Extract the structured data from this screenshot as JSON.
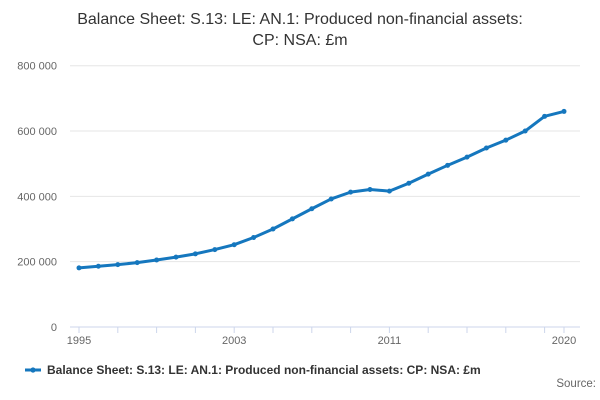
{
  "page": {
    "source_label": "Source:"
  },
  "legend": {
    "label": "Balance Sheet: S.13: LE: AN.1: Produced non-financial assets: CP: NSA: £m"
  },
  "colors": {
    "line": "#1577be",
    "marker": "#1577be",
    "grid": "#e6e6e6",
    "axis": "#ccd6eb",
    "tick_label": "#666666",
    "title_text": "#333333"
  },
  "chart_data": {
    "type": "line",
    "title": "Balance Sheet: S.13: LE: AN.1: Produced non-financial assets: CP: NSA: £m",
    "xlabel": "",
    "ylabel": "",
    "grid": "horizontal",
    "legend_position": "bottom-left",
    "ylim": [
      0,
      800000
    ],
    "yticks": [
      {
        "value": 0,
        "label": "0"
      },
      {
        "value": 200000,
        "label": "200 000"
      },
      {
        "value": 400000,
        "label": "400 000"
      },
      {
        "value": 600000,
        "label": "600 000"
      },
      {
        "value": 800000,
        "label": "800 000"
      }
    ],
    "xticks_labeled": [
      {
        "year": 1995,
        "label": "1995"
      },
      {
        "year": 2003,
        "label": "2003"
      },
      {
        "year": 2011,
        "label": "2011"
      },
      {
        "year": 2020,
        "label": "2020"
      }
    ],
    "xticks_minor_years": [
      1995,
      1997,
      1999,
      2001,
      2003,
      2005,
      2007,
      2009,
      2011,
      2013,
      2015,
      2017,
      2019,
      2020
    ],
    "x": [
      1995,
      1996,
      1997,
      1998,
      1999,
      2000,
      2001,
      2002,
      2003,
      2004,
      2005,
      2006,
      2007,
      2008,
      2009,
      2010,
      2011,
      2012,
      2013,
      2014,
      2015,
      2016,
      2017,
      2018,
      2019,
      2020
    ],
    "series": [
      {
        "name": "Balance Sheet: S.13: LE: AN.1: Produced non-financial assets: CP: NSA: £m",
        "values": [
          181000,
          186000,
          191000,
          197000,
          205000,
          214000,
          224000,
          237000,
          252000,
          274000,
          300000,
          331000,
          362000,
          392000,
          413000,
          421000,
          416000,
          440000,
          468000,
          495000,
          520000,
          548000,
          572000,
          600000,
          645000,
          660000
        ]
      }
    ]
  }
}
